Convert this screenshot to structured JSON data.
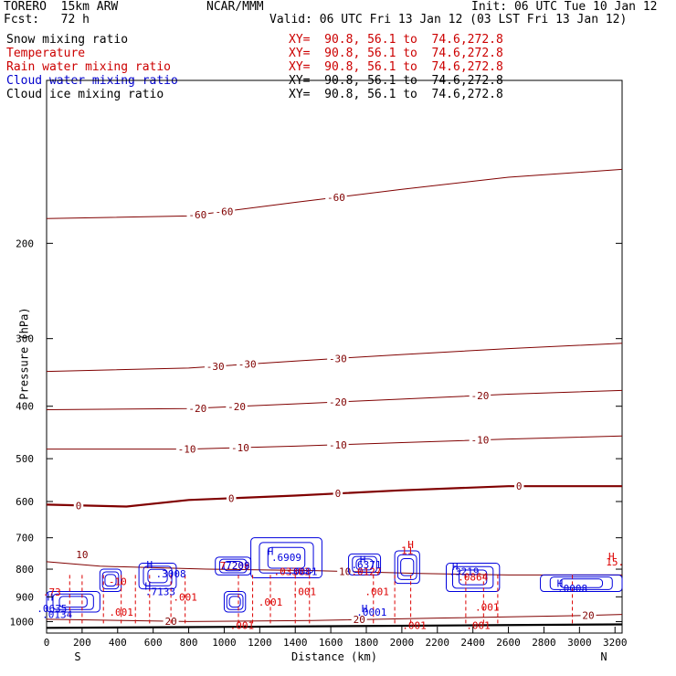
{
  "header": {
    "model": "TORERO  15km ARW",
    "source": "NCAR/MMM",
    "init": "Init: 06 UTC Tue 10 Jan 12",
    "fcst": "Fcst:   72 h",
    "valid": "Valid: 06 UTC Fri 13 Jan 12 (03 LST Fri 13 Jan 12)"
  },
  "fields": [
    {
      "name": "Snow mixing ratio",
      "xy": "XY=  90.8, 56.1 to  74.6,272.8",
      "color": "#000000",
      "xy_color": "#cc0000"
    },
    {
      "name": "Temperature",
      "xy": "XY=  90.8, 56.1 to  74.6,272.8",
      "color": "#cc0000",
      "xy_color": "#cc0000"
    },
    {
      "name": "Rain water mixing ratio",
      "xy": "XY=  90.8, 56.1 to  74.6,272.8",
      "color": "#cc0000",
      "xy_color": "#cc0000"
    },
    {
      "name": "Cloud water mixing ratio",
      "xy": "XY=  90.8, 56.1 to  74.6,272.8",
      "color": "#0000cc",
      "xy_color": "#000000"
    },
    {
      "name": "Cloud ice mixing ratio",
      "xy": "XY=  90.8, 56.1 to  74.6,272.8",
      "color": "#000000",
      "xy_color": "#000000"
    }
  ],
  "colors": {
    "temperature": "#800000",
    "rain": "#dd0000",
    "cloud": "#0000dd",
    "terrain": "#000000"
  },
  "chart_data": {
    "type": "contour",
    "xlabel": "Distance (km)",
    "ylabel": "Pressure (hPa)",
    "x_ticks": [
      0,
      200,
      400,
      600,
      800,
      1000,
      1200,
      1400,
      1600,
      1800,
      2000,
      2200,
      2400,
      2600,
      2800,
      3000,
      3200
    ],
    "y_ticks": [
      200,
      300,
      400,
      500,
      600,
      700,
      800,
      900,
      1000
    ],
    "xlim": [
      0,
      3240
    ],
    "ylim": [
      1050,
      100
    ],
    "y_scale": "log",
    "x_end_labels": {
      "left": "S",
      "right": "N"
    },
    "temperature_contours": [
      {
        "level": -60,
        "x": [
          0,
          800,
          1400,
          2000,
          2600,
          3240
        ],
        "p": [
          180,
          178,
          168,
          159,
          151,
          146
        ],
        "label_x": [
          850,
          1000,
          1630
        ],
        "labels": [
          "-60",
          "-60",
          "-60"
        ]
      },
      {
        "level": -30,
        "x": [
          0,
          800,
          1400,
          2000,
          2600,
          3240
        ],
        "p": [
          345,
          340,
          330,
          321,
          313,
          306
        ],
        "label_x": [
          950,
          1130,
          1640
        ],
        "labels": [
          "-30",
          "-30",
          "-30"
        ]
      },
      {
        "level": -20,
        "x": [
          0,
          800,
          1400,
          2000,
          2600,
          3240
        ],
        "p": [
          406,
          404,
          396,
          388,
          380,
          374
        ],
        "label_x": [
          850,
          1070,
          1640,
          2440
        ],
        "labels": [
          "-20",
          "-20",
          "-20",
          "-20"
        ]
      },
      {
        "level": -10,
        "x": [
          0,
          800,
          1400,
          2000,
          2600,
          3240
        ],
        "p": [
          480,
          480,
          474,
          467,
          460,
          454
        ],
        "label_x": [
          790,
          1090,
          1640,
          2440
        ],
        "labels": [
          "-10",
          "-10",
          "-10",
          "-10"
        ]
      },
      {
        "level": 0,
        "x": [
          0,
          450,
          800,
          1400,
          2000,
          2600,
          3240
        ],
        "p": [
          608,
          613,
          596,
          585,
          572,
          562,
          562
        ],
        "label_x": [
          180,
          1040,
          1640,
          2660
        ],
        "labels": [
          "0",
          "0",
          "0",
          "0"
        ],
        "bold": true
      },
      {
        "level": 10,
        "x": [
          0,
          300,
          900,
          1500,
          2100,
          2600,
          3240
        ],
        "p": [
          775,
          790,
          800,
          805,
          815,
          820,
          820
        ],
        "label_x": [
          1680
        ],
        "labels": [
          "10"
        ]
      },
      {
        "level": 20,
        "x": [
          0,
          800,
          1500,
          2200,
          3000,
          3240
        ],
        "p": [
          990,
          1000,
          995,
          985,
          975,
          970
        ],
        "label_x": [
          700,
          1760,
          3050
        ],
        "labels": [
          "20",
          "20",
          "20"
        ]
      }
    ],
    "contour_labels_misc": [
      {
        "text": "10",
        "x": 200,
        "p": 752,
        "color": "temperature"
      },
      {
        "text": "-10",
        "x": 400,
        "p": 843,
        "color": "rain"
      },
      {
        "text": ".73",
        "x": 30,
        "p": 882,
        "color": "rain"
      },
      {
        "text": "H",
        "x": 2050,
        "p": 720,
        "color": "rain"
      },
      {
        "text": "11",
        "x": 2030,
        "p": 738,
        "color": "rain"
      },
      {
        "text": "H",
        "x": 3180,
        "p": 758,
        "color": "rain"
      },
      {
        "text": "15.",
        "x": 3200,
        "p": 775,
        "color": "rain"
      },
      {
        "text": "7.208",
        "x": 1060,
        "p": 788,
        "color": "rain"
      },
      {
        "text": ".03303",
        "x": 1380,
        "p": 808,
        "color": "rain"
      },
      {
        "text": ".0127",
        "x": 1800,
        "p": 808,
        "color": "rain"
      },
      {
        "text": ".0864",
        "x": 2400,
        "p": 827,
        "color": "rain"
      },
      {
        "text": ".001",
        "x": 780,
        "p": 900,
        "color": "rain"
      },
      {
        "text": ".001",
        "x": 1450,
        "p": 880,
        "color": "rain"
      },
      {
        "text": ".001",
        "x": 1260,
        "p": 920,
        "color": "rain"
      },
      {
        "text": ".001",
        "x": 1860,
        "p": 880,
        "color": "rain"
      },
      {
        "text": ".001",
        "x": 2480,
        "p": 940,
        "color": "rain"
      },
      {
        "text": ".001",
        "x": 1100,
        "p": 1015,
        "color": "rain"
      },
      {
        "text": ".001",
        "x": 2070,
        "p": 1015,
        "color": "rain"
      },
      {
        "text": ".001",
        "x": 2430,
        "p": 1015,
        "color": "rain"
      },
      {
        "text": ".001",
        "x": 420,
        "p": 960,
        "color": "rain"
      },
      {
        "text": "H",
        "x": 20,
        "p": 900,
        "color": "cloud"
      },
      {
        "text": ".0635",
        "x": 30,
        "p": 945,
        "color": "cloud"
      },
      {
        "text": ".0134",
        "x": 60,
        "p": 970,
        "color": "cloud"
      },
      {
        "text": "H",
        "x": 580,
        "p": 785,
        "color": "cloud"
      },
      {
        "text": ".3008",
        "x": 700,
        "p": 815,
        "color": "cloud"
      },
      {
        "text": "H",
        "x": 570,
        "p": 860,
        "color": "cloud"
      },
      {
        "text": ".7133",
        "x": 640,
        "p": 880,
        "color": "cloud"
      },
      {
        "text": ".7209",
        "x": 1060,
        "p": 788,
        "color": "cloud"
      },
      {
        "text": "H",
        "x": 1260,
        "p": 742,
        "color": "cloud"
      },
      {
        "text": ".6909",
        "x": 1350,
        "p": 760,
        "color": "cloud"
      },
      {
        "text": ".0081",
        "x": 1440,
        "p": 808,
        "color": "cloud"
      },
      {
        "text": "H",
        "x": 1780,
        "p": 768,
        "color": "cloud"
      },
      {
        "text": ".6371",
        "x": 1800,
        "p": 785,
        "color": "cloud"
      },
      {
        "text": "H",
        "x": 1790,
        "p": 945,
        "color": "cloud"
      },
      {
        "text": ".0001",
        "x": 1830,
        "p": 960,
        "color": "cloud"
      },
      {
        "text": "H",
        "x": 2300,
        "p": 790,
        "color": "cloud"
      },
      {
        "text": ".3219",
        "x": 2350,
        "p": 808,
        "color": "cloud"
      },
      {
        "text": "H",
        "x": 2890,
        "p": 850,
        "color": "cloud"
      },
      {
        "text": ".0008",
        "x": 2960,
        "p": 868,
        "color": "cloud"
      }
    ],
    "cloud_regions": [
      {
        "x": [
          0,
          300
        ],
        "p": [
          880,
          960
        ]
      },
      {
        "x": [
          300,
          420
        ],
        "p": [
          800,
          880
        ]
      },
      {
        "x": [
          520,
          730
        ],
        "p": [
          780,
          870
        ]
      },
      {
        "x": [
          950,
          1150
        ],
        "p": [
          760,
          820
        ]
      },
      {
        "x": [
          1150,
          1550
        ],
        "p": [
          700,
          830
        ]
      },
      {
        "x": [
          1000,
          1120
        ],
        "p": [
          880,
          960
        ]
      },
      {
        "x": [
          1700,
          1880
        ],
        "p": [
          750,
          820
        ]
      },
      {
        "x": [
          1960,
          2100
        ],
        "p": [
          740,
          850
        ]
      },
      {
        "x": [
          2250,
          2550
        ],
        "p": [
          780,
          880
        ]
      },
      {
        "x": [
          2780,
          3240
        ],
        "p": [
          820,
          880
        ]
      }
    ],
    "rain_columns": [
      130,
      200,
      320,
      420,
      500,
      580,
      700,
      780,
      1080,
      1160,
      1260,
      1400,
      1480,
      1840,
      1960,
      2050,
      2360,
      2460,
      2540,
      2960
    ],
    "terrain": {
      "x": [
        0,
        800,
        1600,
        2400,
        3240
      ],
      "p": [
        1027,
        1024,
        1020,
        1016,
        1012
      ]
    }
  }
}
